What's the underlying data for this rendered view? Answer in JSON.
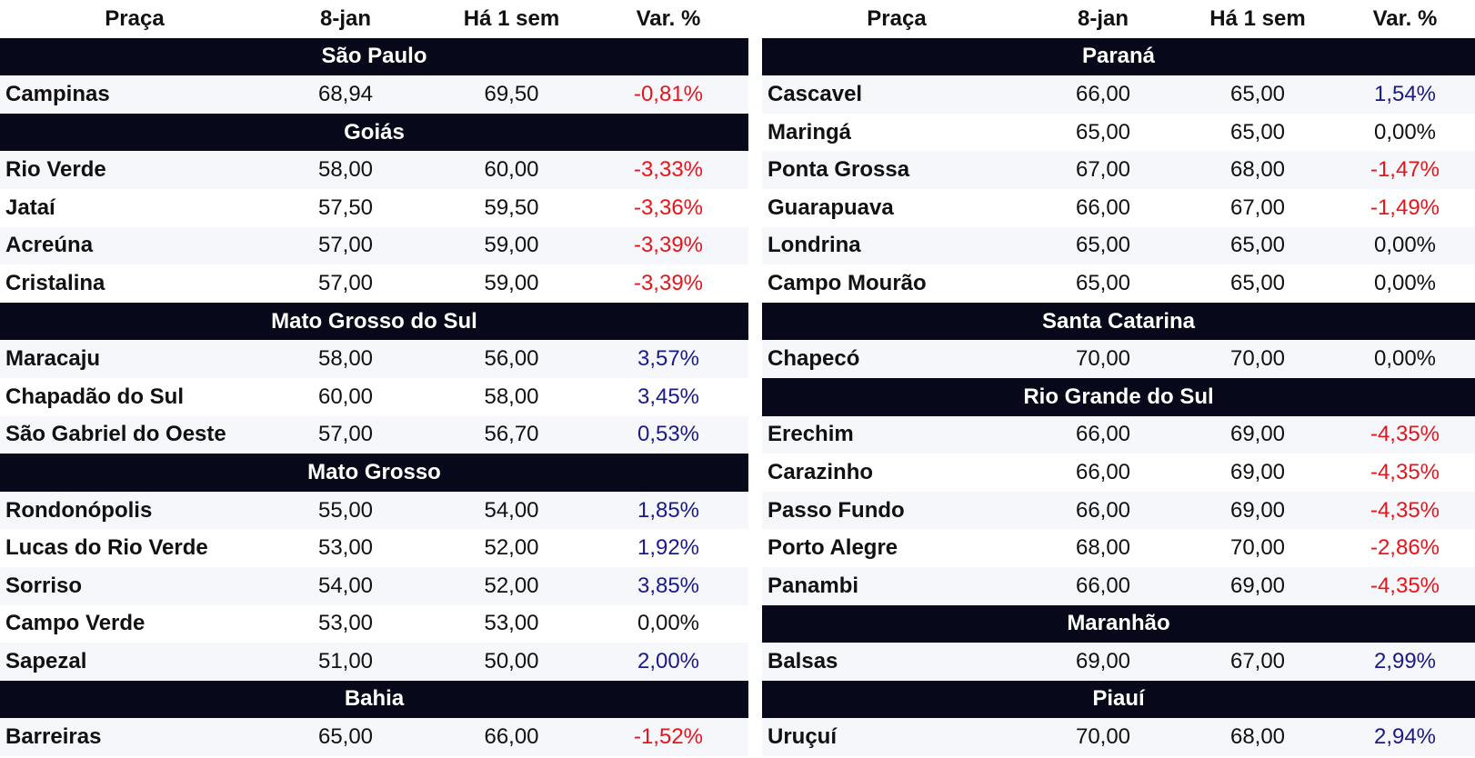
{
  "colors": {
    "negative": "#e8141b",
    "positive": "#1a1a8a",
    "group_bg": "#07091a"
  },
  "left": {
    "header": {
      "praca": "Praça",
      "date": "8-jan",
      "prev": "Há 1 sem",
      "var": "Var. %"
    },
    "groups": [
      {
        "title": "São Paulo",
        "rows": [
          {
            "praca": "Campinas",
            "date": "68,94",
            "prev": "69,50",
            "var": "-0,81%",
            "sign": "neg"
          }
        ]
      },
      {
        "title": "Goiás",
        "rows": [
          {
            "praca": "Rio Verde",
            "date": "58,00",
            "prev": "60,00",
            "var": "-3,33%",
            "sign": "neg"
          },
          {
            "praca": "Jataí",
            "date": "57,50",
            "prev": "59,50",
            "var": "-3,36%",
            "sign": "neg"
          },
          {
            "praca": "Acreúna",
            "date": "57,00",
            "prev": "59,00",
            "var": "-3,39%",
            "sign": "neg"
          },
          {
            "praca": "Cristalina",
            "date": "57,00",
            "prev": "59,00",
            "var": "-3,39%",
            "sign": "neg"
          }
        ]
      },
      {
        "title": "Mato Grosso do Sul",
        "rows": [
          {
            "praca": "Maracaju",
            "date": "58,00",
            "prev": "56,00",
            "var": "3,57%",
            "sign": "pos"
          },
          {
            "praca": "Chapadão do Sul",
            "date": "60,00",
            "prev": "58,00",
            "var": "3,45%",
            "sign": "pos"
          },
          {
            "praca": "São Gabriel do Oeste",
            "date": "57,00",
            "prev": "56,70",
            "var": "0,53%",
            "sign": "pos"
          }
        ]
      },
      {
        "title": "Mato Grosso",
        "rows": [
          {
            "praca": "Rondonópolis",
            "date": "55,00",
            "prev": "54,00",
            "var": "1,85%",
            "sign": "pos"
          },
          {
            "praca": "Lucas do Rio Verde",
            "date": "53,00",
            "prev": "52,00",
            "var": "1,92%",
            "sign": "pos"
          },
          {
            "praca": "Sorriso",
            "date": "54,00",
            "prev": "52,00",
            "var": "3,85%",
            "sign": "pos"
          },
          {
            "praca": "Campo Verde",
            "date": "53,00",
            "prev": "53,00",
            "var": "0,00%",
            "sign": "zero"
          },
          {
            "praca": "Sapezal",
            "date": "51,00",
            "prev": "50,00",
            "var": "2,00%",
            "sign": "pos"
          }
        ]
      },
      {
        "title": "Bahia",
        "rows": [
          {
            "praca": "Barreiras",
            "date": "65,00",
            "prev": "66,00",
            "var": "-1,52%",
            "sign": "neg"
          }
        ]
      }
    ]
  },
  "right": {
    "header": {
      "praca": "Praça",
      "date": "8-jan",
      "prev": "Há 1 sem",
      "var": "Var. %"
    },
    "groups": [
      {
        "title": "Paraná",
        "rows": [
          {
            "praca": "Cascavel",
            "date": "66,00",
            "prev": "65,00",
            "var": "1,54%",
            "sign": "pos"
          },
          {
            "praca": "Maringá",
            "date": "65,00",
            "prev": "65,00",
            "var": "0,00%",
            "sign": "zero"
          },
          {
            "praca": "Ponta Grossa",
            "date": "67,00",
            "prev": "68,00",
            "var": "-1,47%",
            "sign": "neg"
          },
          {
            "praca": "Guarapuava",
            "date": "66,00",
            "prev": "67,00",
            "var": "-1,49%",
            "sign": "neg"
          },
          {
            "praca": "Londrina",
            "date": "65,00",
            "prev": "65,00",
            "var": "0,00%",
            "sign": "zero"
          },
          {
            "praca": "Campo Mourão",
            "date": "65,00",
            "prev": "65,00",
            "var": "0,00%",
            "sign": "zero"
          }
        ]
      },
      {
        "title": "Santa Catarina",
        "rows": [
          {
            "praca": "Chapecó",
            "date": "70,00",
            "prev": "70,00",
            "var": "0,00%",
            "sign": "zero"
          }
        ]
      },
      {
        "title": "Rio Grande do Sul",
        "rows": [
          {
            "praca": "Erechim",
            "date": "66,00",
            "prev": "69,00",
            "var": "-4,35%",
            "sign": "neg"
          },
          {
            "praca": "Carazinho",
            "date": "66,00",
            "prev": "69,00",
            "var": "-4,35%",
            "sign": "neg"
          },
          {
            "praca": "Passo Fundo",
            "date": "66,00",
            "prev": "69,00",
            "var": "-4,35%",
            "sign": "neg"
          },
          {
            "praca": "Porto Alegre",
            "date": "68,00",
            "prev": "70,00",
            "var": "-2,86%",
            "sign": "neg"
          },
          {
            "praca": "Panambi",
            "date": "66,00",
            "prev": "69,00",
            "var": "-4,35%",
            "sign": "neg"
          }
        ]
      },
      {
        "title": "Maranhão",
        "rows": [
          {
            "praca": "Balsas",
            "date": "69,00",
            "prev": "67,00",
            "var": "2,99%",
            "sign": "pos"
          }
        ]
      },
      {
        "title": "Piauí",
        "rows": [
          {
            "praca": "Uruçuí",
            "date": "70,00",
            "prev": "68,00",
            "var": "2,94%",
            "sign": "pos"
          }
        ]
      }
    ]
  }
}
